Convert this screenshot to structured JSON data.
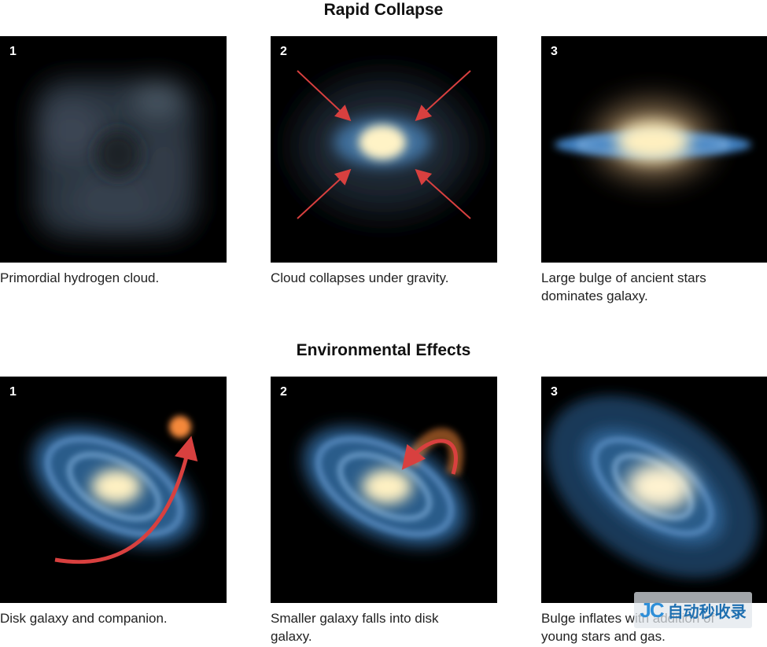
{
  "sections": [
    {
      "title": "Rapid Collapse",
      "panels": [
        {
          "number": "1",
          "caption": "Primordial hydrogen cloud."
        },
        {
          "number": "2",
          "caption": "Cloud collapses under gravity."
        },
        {
          "number": "3",
          "caption": "Large bulge of ancient stars dominates galaxy."
        }
      ]
    },
    {
      "title": "Environmental Effects",
      "panels": [
        {
          "number": "1",
          "caption": "Disk galaxy and companion."
        },
        {
          "number": "2",
          "caption": "Smaller galaxy falls into disk galaxy."
        },
        {
          "number": "3",
          "caption": "Bulge inflates with addition of young stars and gas."
        }
      ]
    }
  ],
  "watermark": {
    "logo": "JC",
    "text": "自动秒收录"
  },
  "colors": {
    "arrow": "#d8403f",
    "core": "#fff3c6",
    "disk": "#4f86c0",
    "companion": "#f4883a"
  }
}
